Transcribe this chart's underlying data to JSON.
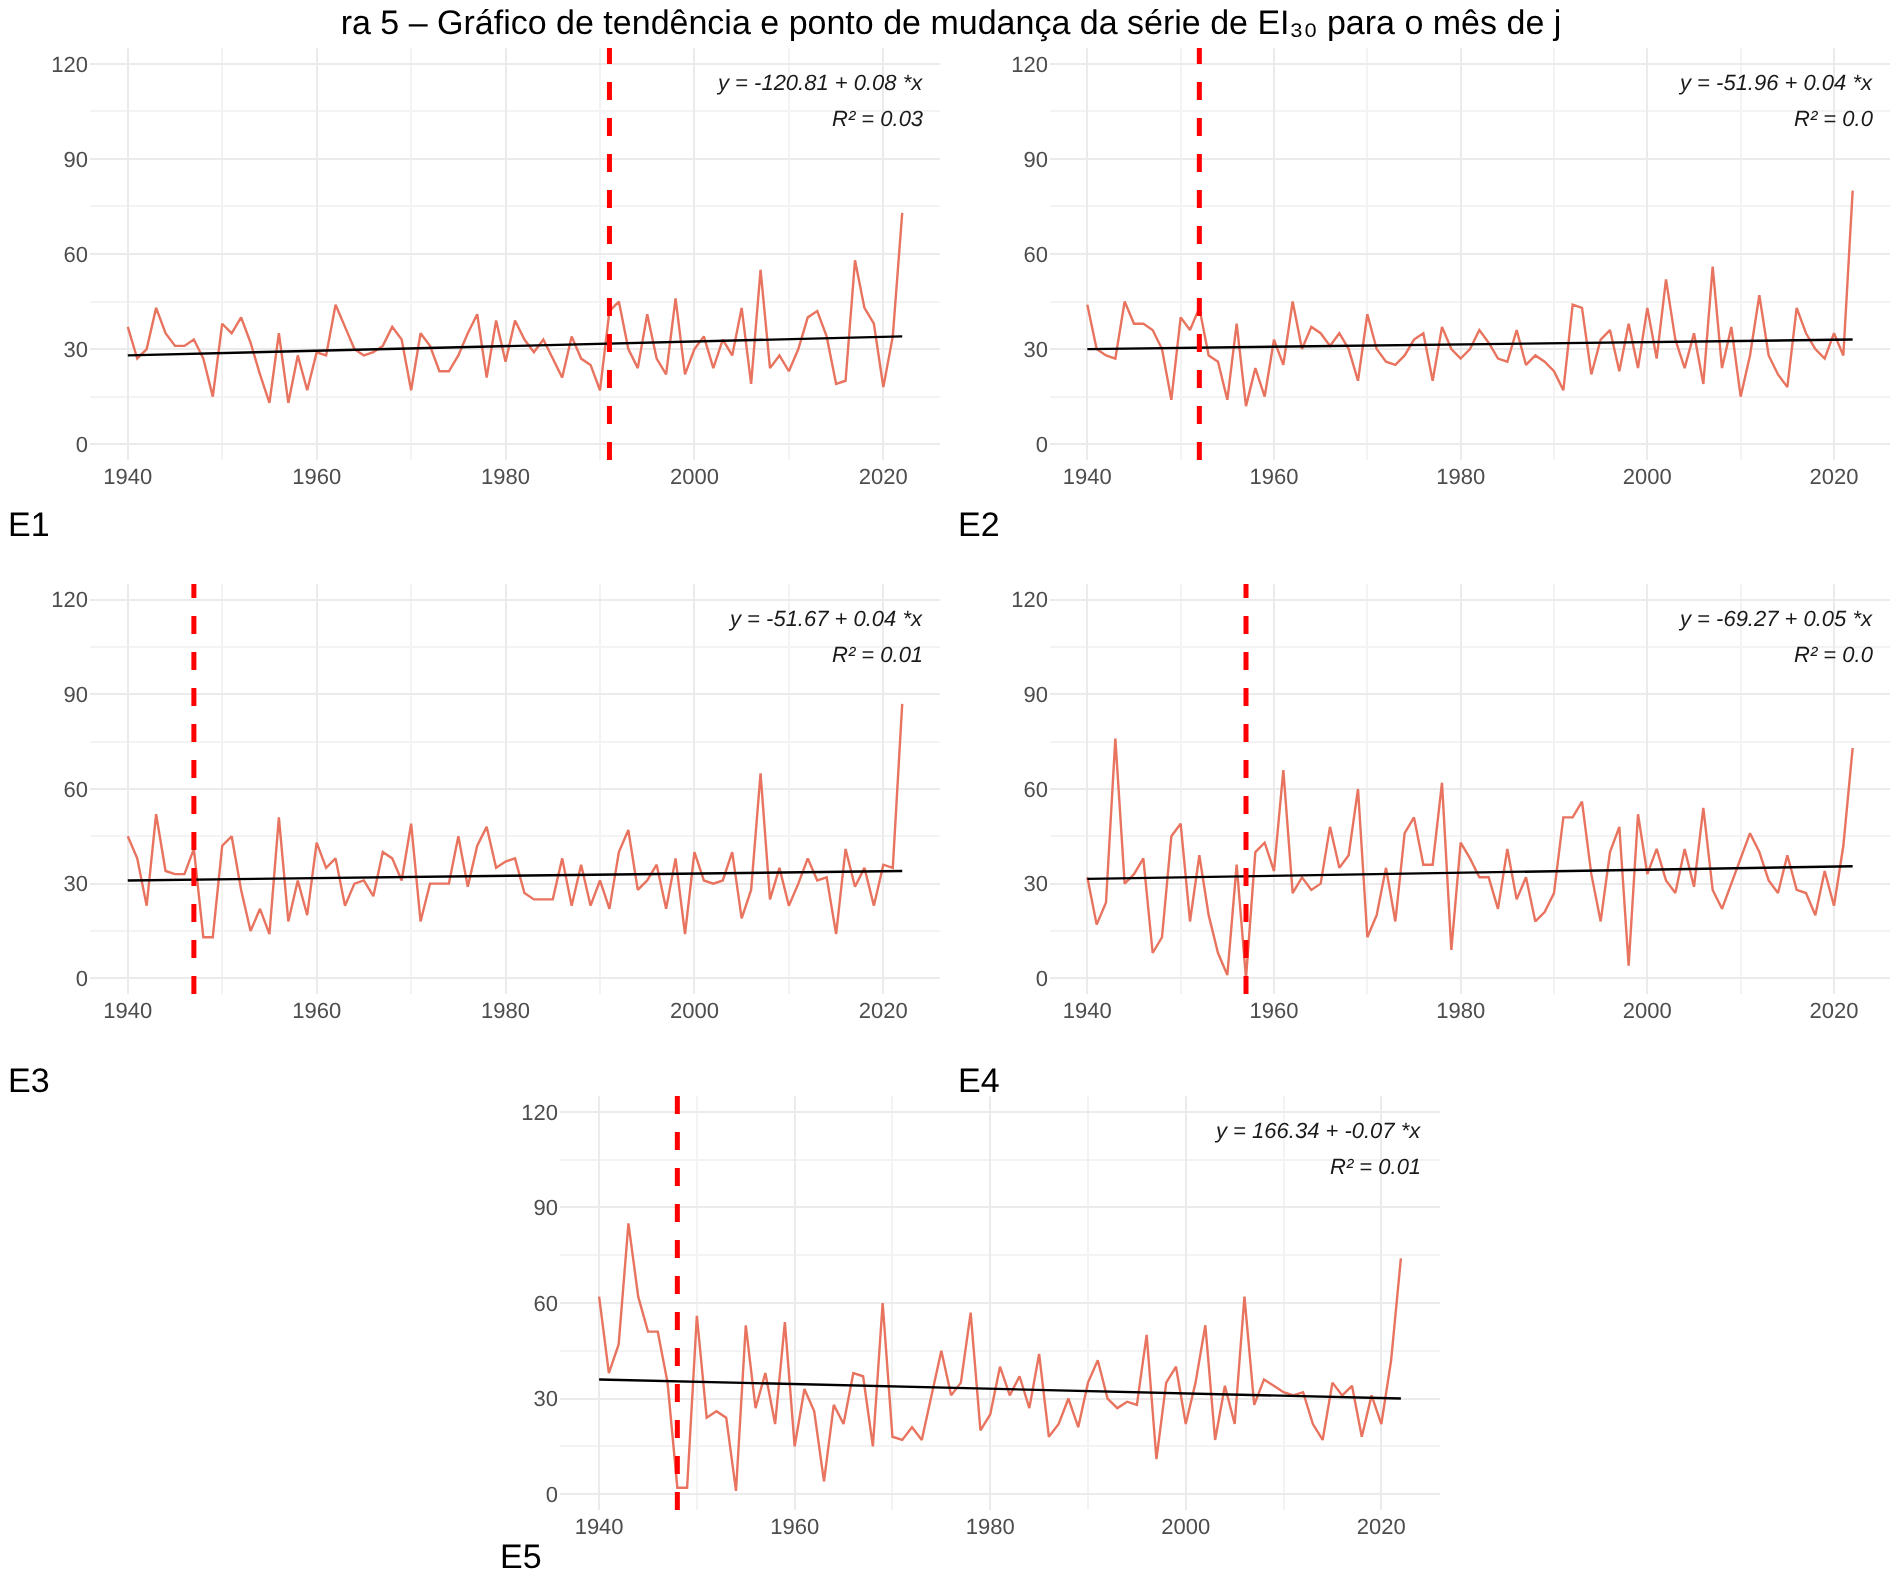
{
  "chart_data": [
    {
      "type": "line",
      "title": "ra 5 – Gráfico de tendência e ponto de mudança da série de EI₃₀ para o mês de j",
      "xlim": [
        1936,
        2026
      ],
      "ylim": [
        -5,
        125
      ],
      "xticks": [
        1940,
        1960,
        1980,
        2000,
        2020
      ],
      "yticks": [
        0,
        30,
        60,
        90,
        120
      ],
      "grid": true,
      "series": [
        {
          "color": "#e8735f",
          "x": [
            1940,
            1941,
            1942,
            1943,
            1944,
            1945,
            1946,
            1947,
            1948,
            1949,
            1950,
            1951,
            1952,
            1953,
            1954,
            1955,
            1956,
            1957,
            1958,
            1959,
            1960,
            1961,
            1962,
            1963,
            1964,
            1965,
            1966,
            1967,
            1968,
            1969,
            1970,
            1971,
            1972,
            1973,
            1974,
            1975,
            1976,
            1977,
            1978,
            1979,
            1980,
            1981,
            1982,
            1983,
            1984,
            1985,
            1986,
            1987,
            1988,
            1989,
            1990,
            1991,
            1992,
            1993,
            1994,
            1995,
            1996,
            1997,
            1998,
            1999,
            2000,
            2001,
            2002,
            2003,
            2004,
            2005,
            2006,
            2007,
            2008,
            2009,
            2010,
            2011,
            2012,
            2013,
            2014,
            2015,
            2016,
            2017,
            2018,
            2019,
            2020,
            2021,
            2022
          ],
          "values": [
            37,
            27,
            30,
            43,
            35,
            31,
            31,
            33,
            27,
            15,
            38,
            35,
            40,
            32,
            22,
            13,
            35,
            13,
            28,
            17,
            29,
            28,
            44,
            37,
            30,
            28,
            29,
            31,
            37,
            33,
            17,
            35,
            31,
            23,
            23,
            28,
            35,
            41,
            21,
            39,
            26,
            39,
            33,
            29,
            33,
            27,
            21,
            34,
            27,
            25,
            17,
            42,
            45,
            30,
            24,
            41,
            27,
            22,
            46,
            22,
            30,
            34,
            24,
            33,
            28,
            43,
            19,
            55,
            24,
            28,
            23,
            30,
            40,
            42,
            34,
            19,
            20,
            58,
            43,
            38,
            18,
            34,
            73
          ]
        },
        {
          "color": "#000000",
          "x": [
            1940,
            2022
          ],
          "values": [
            28,
            34
          ]
        }
      ],
      "ref_lines": [
        {
          "axis": "x",
          "value": 1991,
          "label": null,
          "color": "#ff0000",
          "line_style": "dashed"
        }
      ],
      "annotations": [
        "y = -120.81 + 0.08 *x",
        "R² = 0.03",
        "E1"
      ]
    },
    {
      "type": "line",
      "xlim": [
        1936,
        2026
      ],
      "ylim": [
        -5,
        125
      ],
      "xticks": [
        1940,
        1960,
        1980,
        2000,
        2020
      ],
      "yticks": [
        0,
        30,
        60,
        90,
        120
      ],
      "grid": true,
      "series": [
        {
          "color": "#e8735f",
          "x": [
            1940,
            1941,
            1942,
            1943,
            1944,
            1945,
            1946,
            1947,
            1948,
            1949,
            1950,
            1951,
            1952,
            1953,
            1954,
            1955,
            1956,
            1957,
            1958,
            1959,
            1960,
            1961,
            1962,
            1963,
            1964,
            1965,
            1966,
            1967,
            1968,
            1969,
            1970,
            1971,
            1972,
            1973,
            1974,
            1975,
            1976,
            1977,
            1978,
            1979,
            1980,
            1981,
            1982,
            1983,
            1984,
            1985,
            1986,
            1987,
            1988,
            1989,
            1990,
            1991,
            1992,
            1993,
            1994,
            1995,
            1996,
            1997,
            1998,
            1999,
            2000,
            2001,
            2002,
            2003,
            2004,
            2005,
            2006,
            2007,
            2008,
            2009,
            2010,
            2011,
            2012,
            2013,
            2014,
            2015,
            2016,
            2017,
            2018,
            2019,
            2020,
            2021,
            2022
          ],
          "values": [
            44,
            30,
            28,
            27,
            45,
            38,
            38,
            36,
            30,
            14,
            40,
            36,
            43,
            28,
            26,
            14,
            38,
            12,
            24,
            15,
            33,
            25,
            45,
            30,
            37,
            35,
            31,
            35,
            30,
            20,
            41,
            30,
            26,
            25,
            28,
            33,
            35,
            20,
            37,
            30,
            27,
            30,
            36,
            32,
            27,
            26,
            36,
            25,
            28,
            26,
            23,
            17,
            44,
            43,
            22,
            33,
            36,
            23,
            38,
            24,
            43,
            27,
            52,
            33,
            24,
            35,
            19,
            56,
            24,
            37,
            15,
            28,
            47,
            28,
            22,
            18,
            43,
            35,
            30,
            27,
            35,
            28,
            80
          ]
        },
        {
          "color": "#000000",
          "x": [
            1940,
            2022
          ],
          "values": [
            30,
            33
          ]
        }
      ],
      "ref_lines": [
        {
          "axis": "x",
          "value": 1952,
          "label": null,
          "color": "#ff0000",
          "line_style": "dashed"
        }
      ],
      "annotations": [
        "y = -51.96 + 0.04 *x",
        "R² = 0.0",
        "E2"
      ]
    },
    {
      "type": "line",
      "xlim": [
        1936,
        2026
      ],
      "ylim": [
        -5,
        125
      ],
      "xticks": [
        1940,
        1960,
        1980,
        2000,
        2020
      ],
      "yticks": [
        0,
        30,
        60,
        90,
        120
      ],
      "grid": true,
      "series": [
        {
          "color": "#e8735f",
          "x": [
            1940,
            1941,
            1942,
            1943,
            1944,
            1945,
            1946,
            1947,
            1948,
            1949,
            1950,
            1951,
            1952,
            1953,
            1954,
            1955,
            1956,
            1957,
            1958,
            1959,
            1960,
            1961,
            1962,
            1963,
            1964,
            1965,
            1966,
            1967,
            1968,
            1969,
            1970,
            1971,
            1972,
            1973,
            1974,
            1975,
            1976,
            1977,
            1978,
            1979,
            1980,
            1981,
            1982,
            1983,
            1984,
            1985,
            1986,
            1987,
            1988,
            1989,
            1990,
            1991,
            1992,
            1993,
            1994,
            1995,
            1996,
            1997,
            1998,
            1999,
            2000,
            2001,
            2002,
            2003,
            2004,
            2005,
            2006,
            2007,
            2008,
            2009,
            2010,
            2011,
            2012,
            2013,
            2014,
            2015,
            2016,
            2017,
            2018,
            2019,
            2020,
            2021,
            2022
          ],
          "values": [
            45,
            38,
            23,
            52,
            34,
            33,
            33,
            41,
            13,
            13,
            42,
            45,
            28,
            15,
            22,
            14,
            51,
            18,
            31,
            20,
            43,
            35,
            38,
            23,
            30,
            31,
            26,
            40,
            38,
            31,
            49,
            18,
            30,
            30,
            30,
            45,
            29,
            42,
            48,
            35,
            37,
            38,
            27,
            25,
            25,
            25,
            38,
            23,
            36,
            23,
            31,
            22,
            40,
            47,
            28,
            31,
            36,
            22,
            38,
            14,
            40,
            31,
            30,
            31,
            40,
            19,
            28,
            65,
            25,
            35,
            23,
            30,
            38,
            31,
            32,
            14,
            41,
            29,
            35,
            23,
            36,
            35,
            87
          ]
        },
        {
          "color": "#000000",
          "x": [
            1940,
            2022
          ],
          "values": [
            31,
            34
          ]
        }
      ],
      "ref_lines": [
        {
          "axis": "x",
          "value": 1947,
          "label": null,
          "color": "#ff0000",
          "line_style": "dashed"
        }
      ],
      "annotations": [
        "y = -51.67 + 0.04 *x",
        "R² = 0.01",
        "E3"
      ]
    },
    {
      "type": "line",
      "xlim": [
        1936,
        2026
      ],
      "ylim": [
        -5,
        125
      ],
      "xticks": [
        1940,
        1960,
        1980,
        2000,
        2020
      ],
      "yticks": [
        0,
        30,
        60,
        90,
        120
      ],
      "grid": true,
      "series": [
        {
          "color": "#e8735f",
          "x": [
            1940,
            1941,
            1942,
            1943,
            1944,
            1945,
            1946,
            1947,
            1948,
            1949,
            1950,
            1951,
            1952,
            1953,
            1954,
            1955,
            1956,
            1957,
            1958,
            1959,
            1960,
            1961,
            1962,
            1963,
            1964,
            1965,
            1966,
            1967,
            1968,
            1969,
            1970,
            1971,
            1972,
            1973,
            1974,
            1975,
            1976,
            1977,
            1978,
            1979,
            1980,
            1981,
            1982,
            1983,
            1984,
            1985,
            1986,
            1987,
            1988,
            1989,
            1990,
            1991,
            1992,
            1993,
            1994,
            1995,
            1996,
            1997,
            1998,
            1999,
            2000,
            2001,
            2002,
            2003,
            2004,
            2005,
            2006,
            2007,
            2008,
            2009,
            2010,
            2011,
            2012,
            2013,
            2014,
            2015,
            2016,
            2017,
            2018,
            2019,
            2020,
            2021,
            2022
          ],
          "values": [
            32,
            17,
            24,
            76,
            30,
            33,
            38,
            8,
            13,
            45,
            49,
            18,
            39,
            20,
            8,
            1,
            36,
            0,
            40,
            43,
            34,
            66,
            27,
            32,
            28,
            30,
            48,
            35,
            39,
            60,
            13,
            20,
            35,
            18,
            46,
            51,
            36,
            36,
            62,
            9,
            43,
            38,
            32,
            32,
            22,
            41,
            25,
            32,
            18,
            21,
            27,
            51,
            51,
            56,
            33,
            18,
            40,
            48,
            4,
            52,
            33,
            41,
            31,
            27,
            41,
            29,
            54,
            28,
            22,
            30,
            38,
            46,
            40,
            31,
            27,
            39,
            28,
            27,
            20,
            34,
            23,
            42,
            73
          ]
        },
        {
          "color": "#000000",
          "x": [
            1940,
            2022
          ],
          "values": [
            31.5,
            35.5
          ]
        }
      ],
      "ref_lines": [
        {
          "axis": "x",
          "value": 1957,
          "label": null,
          "color": "#ff0000",
          "line_style": "dashed"
        }
      ],
      "annotations": [
        "y = -69.27 + 0.05 *x",
        "R² = 0.0",
        "E4"
      ]
    },
    {
      "type": "line",
      "xlim": [
        1936,
        2026
      ],
      "ylim": [
        -5,
        125
      ],
      "xticks": [
        1940,
        1960,
        1980,
        2000,
        2020
      ],
      "yticks": [
        0,
        30,
        60,
        90,
        120
      ],
      "grid": true,
      "series": [
        {
          "color": "#e8735f",
          "x": [
            1940,
            1941,
            1942,
            1943,
            1944,
            1945,
            1946,
            1947,
            1948,
            1949,
            1950,
            1951,
            1952,
            1953,
            1954,
            1955,
            1956,
            1957,
            1958,
            1959,
            1960,
            1961,
            1962,
            1963,
            1964,
            1965,
            1966,
            1967,
            1968,
            1969,
            1970,
            1971,
            1972,
            1973,
            1974,
            1975,
            1976,
            1977,
            1978,
            1979,
            1980,
            1981,
            1982,
            1983,
            1984,
            1985,
            1986,
            1987,
            1988,
            1989,
            1990,
            1991,
            1992,
            1993,
            1994,
            1995,
            1996,
            1997,
            1998,
            1999,
            2000,
            2001,
            2002,
            2003,
            2004,
            2005,
            2006,
            2007,
            2008,
            2009,
            2010,
            2011,
            2012,
            2013,
            2014,
            2015,
            2016,
            2017,
            2018,
            2019,
            2020,
            2021,
            2022
          ],
          "values": [
            62,
            38,
            47,
            85,
            62,
            51,
            51,
            35,
            2,
            2,
            56,
            24,
            26,
            24,
            1,
            53,
            27,
            38,
            22,
            54,
            15,
            33,
            26,
            4,
            28,
            22,
            38,
            37,
            15,
            60,
            18,
            17,
            21,
            17,
            31,
            45,
            31,
            35,
            57,
            20,
            25,
            40,
            31,
            37,
            27,
            44,
            18,
            22,
            30,
            21,
            35,
            42,
            30,
            27,
            29,
            28,
            50,
            11,
            35,
            40,
            22,
            35,
            53,
            17,
            34,
            22,
            62,
            28,
            36,
            34,
            32,
            31,
            32,
            22,
            17,
            35,
            31,
            34,
            18,
            31,
            22,
            42,
            74
          ]
        },
        {
          "color": "#000000",
          "x": [
            1940,
            2022
          ],
          "values": [
            36,
            30
          ]
        }
      ],
      "ref_lines": [
        {
          "axis": "x",
          "value": 1948,
          "label": null,
          "color": "#ff0000",
          "line_style": "dashed"
        }
      ],
      "annotations": [
        "y = 166.34 + -0.07 *x",
        "R² = 0.01",
        "E5"
      ]
    }
  ]
}
